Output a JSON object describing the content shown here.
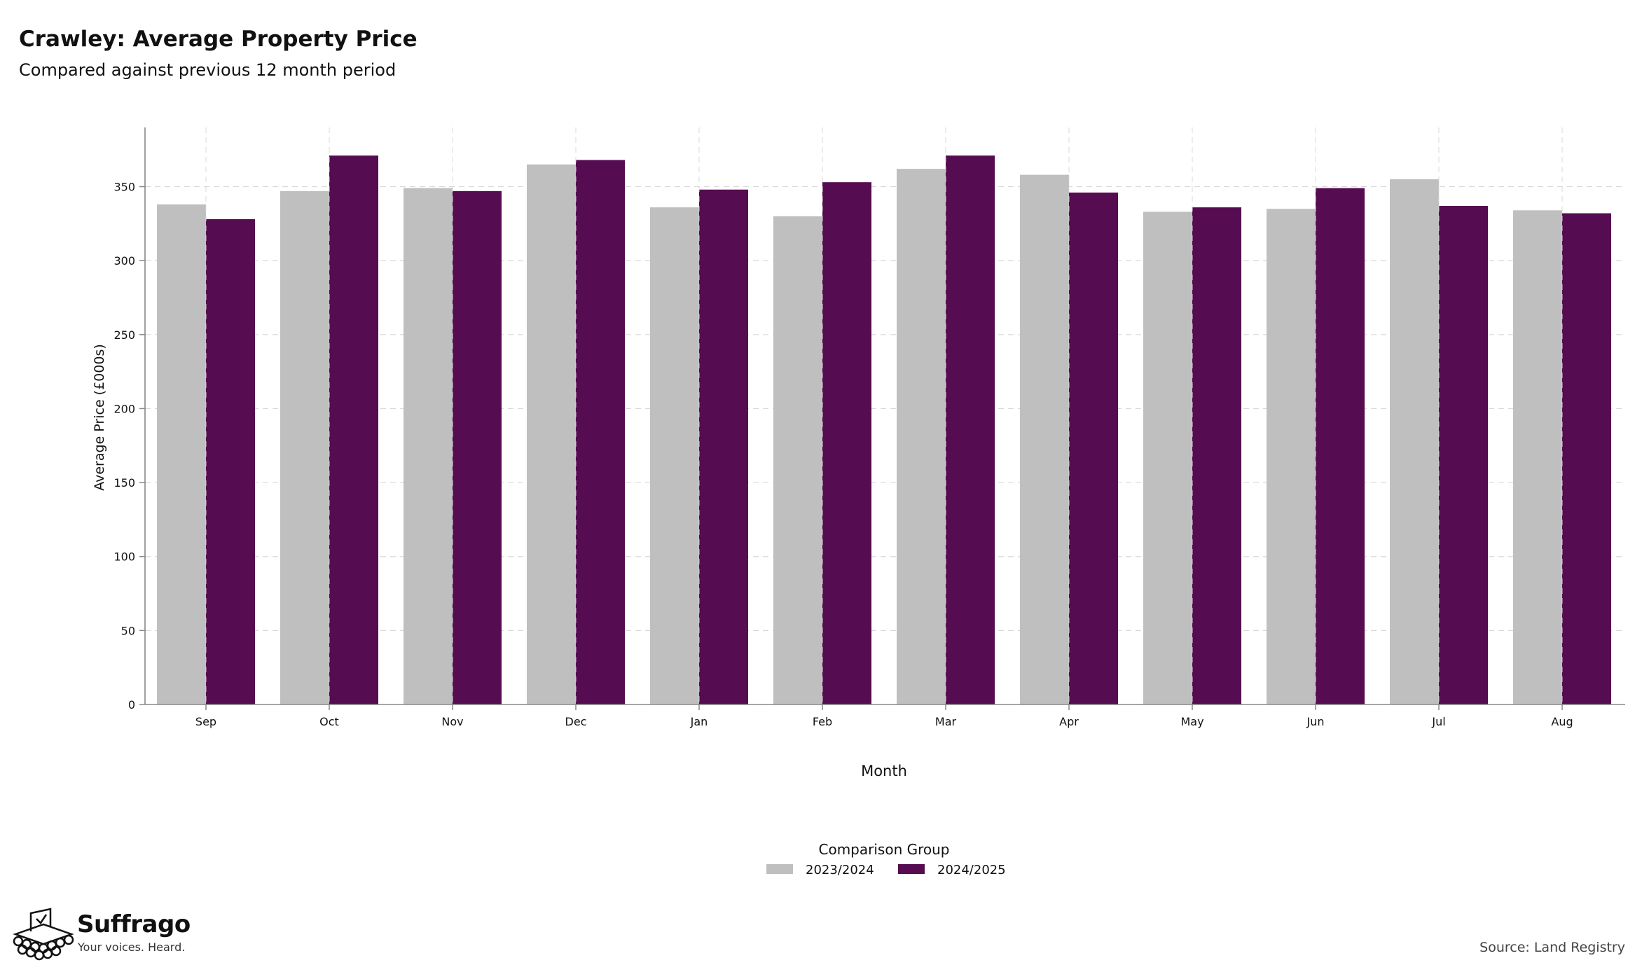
{
  "header": {
    "title": "Crawley: Average Property Price",
    "subtitle": "Compared against previous 12 month period"
  },
  "chart_data": {
    "type": "bar",
    "title": "Crawley: Average Property Price",
    "subtitle": "Compared against previous 12 month period",
    "xlabel": "Month",
    "ylabel": "Average Price (£000s)",
    "categories": [
      "Sep",
      "Oct",
      "Nov",
      "Dec",
      "Jan",
      "Feb",
      "Mar",
      "Apr",
      "May",
      "Jun",
      "Jul",
      "Aug"
    ],
    "series": [
      {
        "name": "2023/2024",
        "color": "#bfbfbf",
        "values": [
          338,
          347,
          349,
          365,
          336,
          330,
          362,
          358,
          333,
          335,
          355,
          334
        ]
      },
      {
        "name": "2024/2025",
        "color": "#560c51",
        "values": [
          328,
          371,
          347,
          368,
          348,
          353,
          371,
          346,
          336,
          349,
          337,
          332
        ]
      }
    ],
    "ylim": [
      0,
      390
    ],
    "yticks": [
      0,
      50,
      100,
      150,
      200,
      250,
      300,
      350
    ],
    "grid": true,
    "legend": {
      "title": "Comparison Group",
      "placement": "bottom-center"
    }
  },
  "footer": {
    "brand_name": "Suffrago",
    "brand_tagline": "Your voices. Heard.",
    "brand_icon": "ballot-box-icon",
    "source": "Source: Land Registry"
  }
}
